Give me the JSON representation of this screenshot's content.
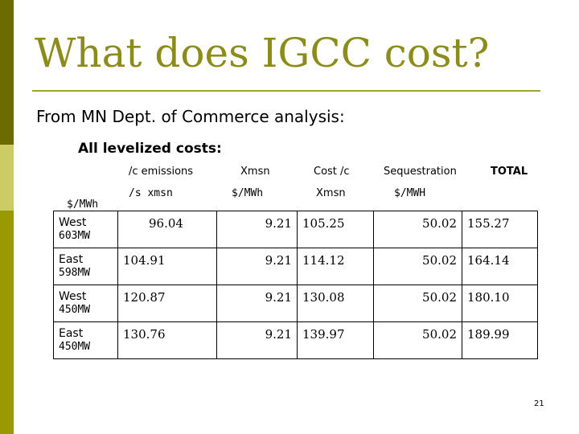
{
  "slide": {
    "title": "What does IGCC cost?",
    "subtitle": "From MN Dept. of Commerce analysis:",
    "section": "All levelized costs:",
    "row_unit_label": "$/MWh",
    "page_number": "21",
    "colors": {
      "title": "#8c8c1a",
      "bar_dark": "#6b6b00",
      "bar_light": "#cccc66",
      "bar_mid": "#999900"
    }
  },
  "table": {
    "headers": [
      {
        "line1": "/c emissions",
        "line2": "/s xmsn"
      },
      {
        "line1": "Xmsn",
        "line2": "$/MWh"
      },
      {
        "line1": "Cost /c",
        "line2": "Xmsn"
      },
      {
        "line1": "Sequestration",
        "line2": "$/MWH"
      },
      {
        "line1": "TOTAL",
        "line2": ""
      }
    ],
    "rows": [
      {
        "name": "West",
        "capacity": "603MW",
        "values": [
          "96.04",
          "9.21",
          "105.25",
          "50.02",
          "155.27"
        ]
      },
      {
        "name": "East",
        "capacity": "598MW",
        "values": [
          "104.91",
          "9.21",
          "114.12",
          "50.02",
          "164.14"
        ]
      },
      {
        "name": "West",
        "capacity": "450MW",
        "values": [
          "120.87",
          "9.21",
          "130.08",
          "50.02",
          "180.10"
        ]
      },
      {
        "name": "East",
        "capacity": "450MW",
        "values": [
          "130.76",
          "9.21",
          "139.97",
          "50.02",
          "189.99"
        ]
      }
    ]
  }
}
